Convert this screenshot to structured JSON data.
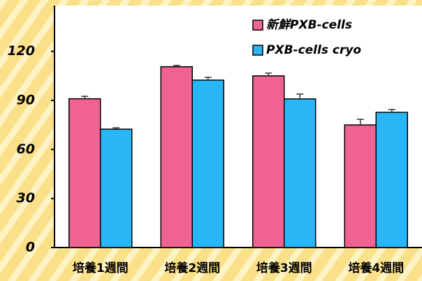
{
  "chart_data": {
    "type": "bar",
    "categories": [
      "培養1週間",
      "培養2週間",
      "培養3週間",
      "培養4週間"
    ],
    "series": [
      {
        "name": "新鮮PXB-cells",
        "color": "#f06292",
        "values": [
          91,
          110.6,
          105,
          75
        ],
        "errors": [
          1.5,
          0.8,
          1.7,
          3.4
        ]
      },
      {
        "name": "PXB-cells cryo",
        "color": "#29b6f6",
        "values": [
          72.4,
          102.4,
          90.9,
          82.7
        ],
        "errors": [
          0.8,
          1.7,
          3,
          1.7
        ]
      }
    ],
    "ylim": [
      0,
      148
    ],
    "yticks": [
      0,
      30,
      60,
      90,
      120
    ],
    "legend": "upper right"
  }
}
